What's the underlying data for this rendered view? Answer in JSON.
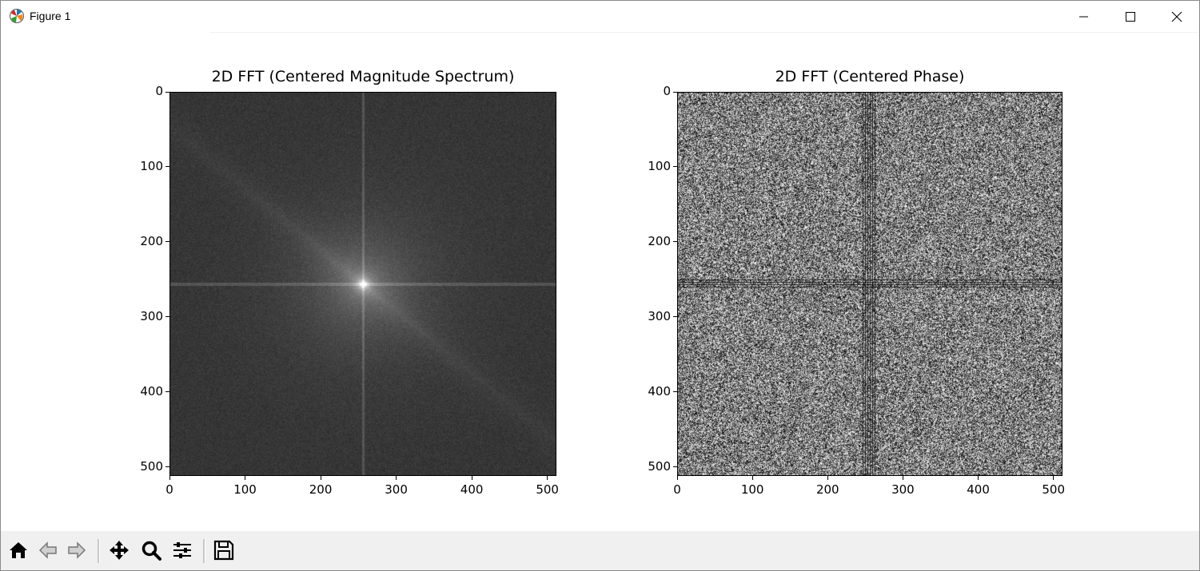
{
  "window": {
    "title": "Figure 1",
    "icon": "matplotlib-logo-icon",
    "controls": [
      "minimize-icon",
      "maximize-icon",
      "close-icon"
    ]
  },
  "toolbar": {
    "buttons": [
      {
        "name": "home",
        "icon": "home-icon"
      },
      {
        "name": "back",
        "icon": "arrow-left-icon"
      },
      {
        "name": "forward",
        "icon": "arrow-right-icon"
      },
      {
        "name": "pan",
        "icon": "move-icon"
      },
      {
        "name": "zoom",
        "icon": "magnifier-icon"
      },
      {
        "name": "configure-subplots",
        "icon": "sliders-icon"
      },
      {
        "name": "save",
        "icon": "floppy-disk-icon"
      }
    ]
  },
  "chart_data": [
    {
      "type": "heatmap",
      "title": "2D FFT (Centered Magnitude Spectrum)",
      "colormap": "gray",
      "x_ticks": [
        "0",
        "100",
        "200",
        "300",
        "400",
        "500"
      ],
      "y_ticks": [
        "0",
        "100",
        "200",
        "300",
        "400",
        "500"
      ],
      "xlim": [
        0,
        512
      ],
      "ylim": [
        512,
        0
      ],
      "xlabel": "",
      "ylabel": ""
    },
    {
      "type": "heatmap",
      "title": "2D FFT (Centered Phase)",
      "colormap": "gray",
      "x_ticks": [
        "0",
        "100",
        "200",
        "300",
        "400",
        "500"
      ],
      "y_ticks": [
        "0",
        "100",
        "200",
        "300",
        "400",
        "500"
      ],
      "xlim": [
        0,
        512
      ],
      "ylim": [
        512,
        0
      ],
      "xlabel": "",
      "ylabel": ""
    }
  ]
}
